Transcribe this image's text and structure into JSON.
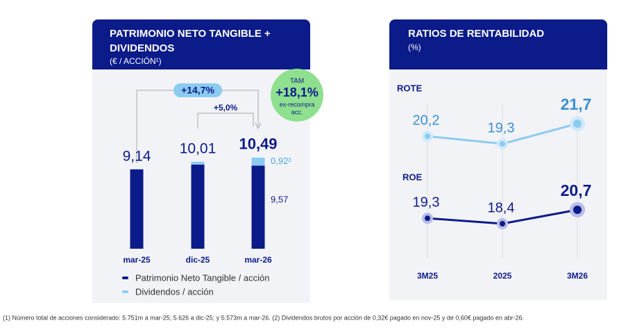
{
  "chart_data": [
    {
      "type": "stacked-bar",
      "title_lines": [
        "PATRIMONIO NETO TANGIBLE +",
        "DIVIDENDOS"
      ],
      "subtitle": "(€ / ACCIÓN¹)",
      "categories": [
        "mar-25",
        "dic-25",
        "mar-26"
      ],
      "series": [
        {
          "name": "Patrimonio Neto Tangible / acción",
          "color": "#0c1b8a",
          "values": [
            9.14,
            9.69,
            9.57
          ],
          "value_labels": [
            null,
            null,
            "9,57"
          ]
        },
        {
          "name": "Dividendos / acción",
          "color": "#8ccbf0",
          "values": [
            null,
            0.32,
            0.92
          ],
          "value_labels": [
            null,
            null,
            "0,92²"
          ]
        }
      ],
      "totals": [
        9.14,
        10.01,
        10.49
      ],
      "total_labels": [
        "9,14",
        "10,01",
        "10,49"
      ],
      "growth_labels": [
        "+14,7%",
        "+5,0%"
      ],
      "tam": {
        "label": "TAM",
        "value": "+18,1%",
        "note_lines": [
          "ex-recompra",
          "acc."
        ]
      }
    },
    {
      "type": "line",
      "title": "RATIOS DE RENTABILIDAD",
      "subtitle": "(%)",
      "categories": [
        "3M25",
        "2025",
        "3M26"
      ],
      "series": [
        {
          "name": "ROTE",
          "color": "#8ccbf0",
          "halo": "#cfe9fa",
          "values": [
            20.2,
            19.3,
            21.7
          ],
          "value_labels": [
            "20,2",
            "19,3",
            "21,7"
          ]
        },
        {
          "name": "ROE",
          "color": "#0c1b8a",
          "halo": "#b9bde6",
          "values": [
            19.3,
            18.4,
            20.7
          ],
          "value_labels": [
            "19,3",
            "18,4",
            "20,7"
          ]
        }
      ]
    }
  ],
  "footnote": "(1) Número total de acciones considerado: 5.751m a mar-25; 5.626 a dic-25; y 5.573m a mar-26. (2) Dividendos brutos por acción de 0,32€ pagado en nov-25 y de 0,60€ pagado en abr-26."
}
